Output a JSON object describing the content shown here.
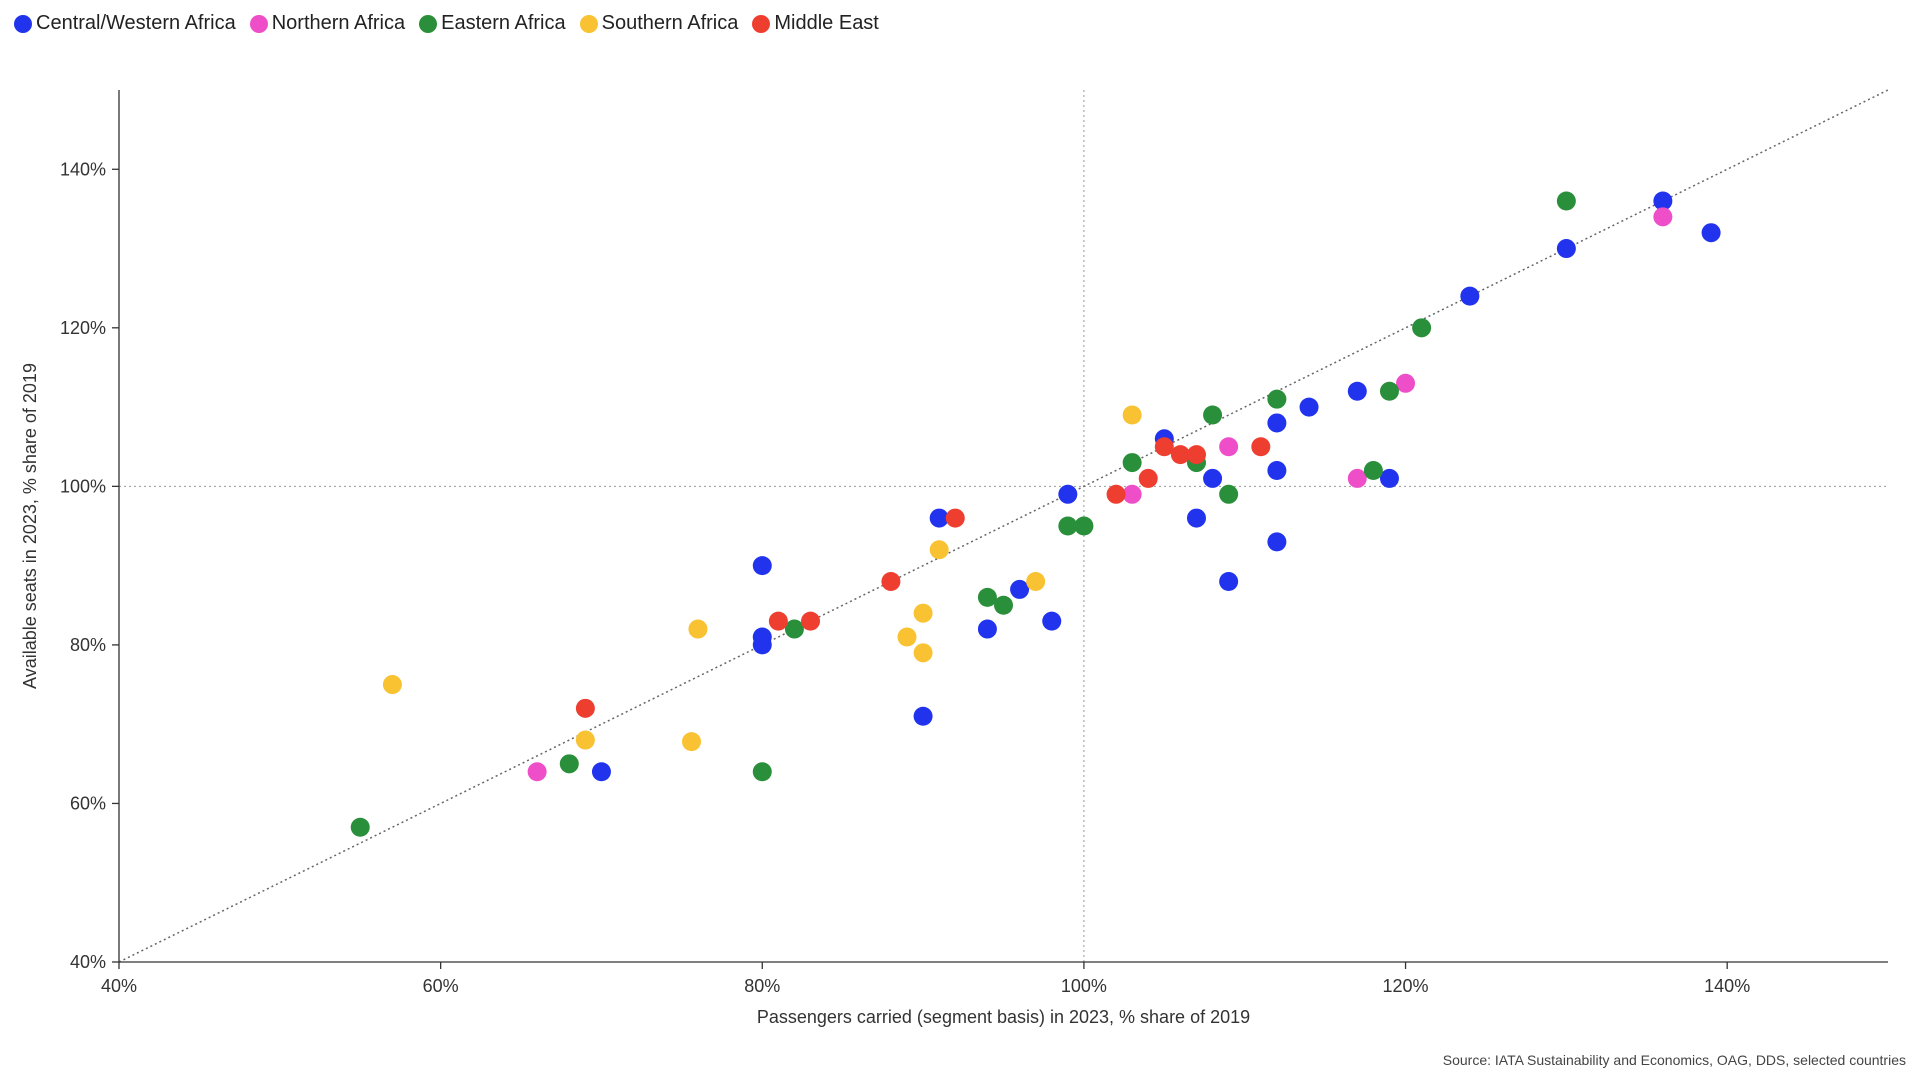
{
  "chart_data": {
    "type": "scatter",
    "xlabel": "Passengers carried (segment basis) in 2023, % share of 2019",
    "ylabel": "Available seats in 2023, % share of 2019",
    "xlim": [
      40,
      150
    ],
    "ylim": [
      40,
      150
    ],
    "x_ticks": [
      40,
      60,
      80,
      100,
      120,
      140
    ],
    "y_ticks": [
      40,
      60,
      80,
      100,
      120,
      140
    ],
    "x_tick_labels": [
      "40%",
      "60%",
      "80%",
      "100%",
      "120%",
      "140%"
    ],
    "y_tick_labels": [
      "40%",
      "60%",
      "80%",
      "100%",
      "120%",
      "140%"
    ],
    "reference_lines": {
      "x": 100,
      "y": 100,
      "diagonal": true
    },
    "grid": false,
    "legend_position": "top-left",
    "series": [
      {
        "name": "Central/Western Africa",
        "color": "#2233ee",
        "points": [
          [
            136,
            136
          ],
          [
            130,
            130
          ],
          [
            139,
            132
          ],
          [
            124,
            124
          ],
          [
            117,
            112
          ],
          [
            114,
            110
          ],
          [
            112,
            108
          ],
          [
            105,
            106
          ],
          [
            112,
            102
          ],
          [
            108,
            101
          ],
          [
            119,
            101
          ],
          [
            99,
            99
          ],
          [
            107,
            96
          ],
          [
            112,
            93
          ],
          [
            109,
            88
          ],
          [
            96,
            87
          ],
          [
            98,
            83
          ],
          [
            94,
            82
          ],
          [
            91,
            96
          ],
          [
            80,
            90
          ],
          [
            80,
            81
          ],
          [
            80,
            80
          ],
          [
            90,
            71
          ],
          [
            70,
            64
          ]
        ]
      },
      {
        "name": "Northern Africa",
        "color": "#ee4fc9",
        "points": [
          [
            136,
            134
          ],
          [
            120,
            113
          ],
          [
            109,
            105
          ],
          [
            117,
            101
          ],
          [
            103,
            99
          ],
          [
            66,
            64
          ]
        ]
      },
      {
        "name": "Eastern Africa",
        "color": "#2a8f3a",
        "points": [
          [
            130,
            136
          ],
          [
            121,
            120
          ],
          [
            119,
            112
          ],
          [
            112,
            111
          ],
          [
            108,
            109
          ],
          [
            103,
            103
          ],
          [
            107,
            103
          ],
          [
            118,
            102
          ],
          [
            109,
            99
          ],
          [
            99,
            95
          ],
          [
            100,
            95
          ],
          [
            94,
            86
          ],
          [
            95,
            85
          ],
          [
            82,
            82
          ],
          [
            68,
            65
          ],
          [
            80,
            64
          ],
          [
            55,
            57
          ]
        ]
      },
      {
        "name": "Southern Africa",
        "color": "#f8c232",
        "points": [
          [
            103,
            109
          ],
          [
            91,
            92
          ],
          [
            97,
            88
          ],
          [
            90,
            84
          ],
          [
            89,
            81
          ],
          [
            90,
            79
          ],
          [
            76,
            82
          ],
          [
            57,
            75
          ],
          [
            69,
            68
          ],
          [
            75.6,
            67.8
          ]
        ]
      },
      {
        "name": "Middle East",
        "color": "#ee3e2f",
        "points": [
          [
            105,
            105
          ],
          [
            106,
            104
          ],
          [
            107,
            104
          ],
          [
            111,
            105
          ],
          [
            104,
            101
          ],
          [
            102,
            99
          ],
          [
            92,
            96
          ],
          [
            88,
            88
          ],
          [
            81,
            83
          ],
          [
            83,
            83
          ],
          [
            69,
            72
          ]
        ]
      }
    ]
  },
  "source": "Source: IATA Sustainability and Economics, OAG, DDS, selected countries"
}
